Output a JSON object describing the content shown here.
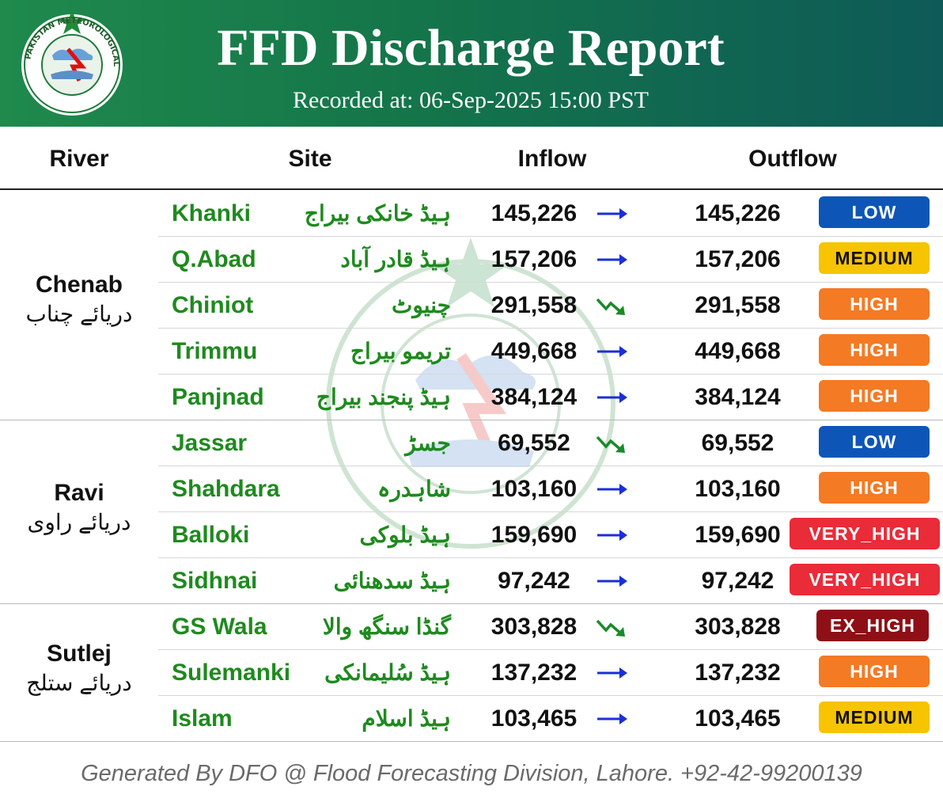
{
  "header": {
    "title": "FFD Discharge Report",
    "subtitle": "Recorded at: 06-Sep-2025 15:00 PST",
    "logo_text": "PAKISTAN METEOROLOGICAL DEPARTMENT"
  },
  "columns": {
    "river": "River",
    "site": "Site",
    "inflow": "Inflow",
    "outflow": "Outflow"
  },
  "colors": {
    "header_start": "#1f8a4c",
    "header_end": "#0e5a58",
    "site_text": "#1e8a1e",
    "low": "#0d56b8",
    "medium": "#f6c400",
    "high": "#f47a24",
    "very_high": "#ea2b38",
    "ex_high": "#8f0f16"
  },
  "rivers": [
    {
      "name": "Chenab",
      "urdu": "دریائے چناب"
    },
    {
      "name": "Ravi",
      "urdu": "دریائے راوی"
    },
    {
      "name": "Sutlej",
      "urdu": "دریائے ستلج"
    }
  ],
  "rows": [
    {
      "site": "Khanki",
      "site_urdu": "ہیڈ خانکی بیراج",
      "inflow": "145,226",
      "trend": "steady",
      "outflow": "145,226",
      "status": "LOW"
    },
    {
      "site": "Q.Abad",
      "site_urdu": "ہیڈ قادر آباد",
      "inflow": "157,206",
      "trend": "steady",
      "outflow": "157,206",
      "status": "MEDIUM"
    },
    {
      "site": "Chiniot",
      "site_urdu": "چنیوٹ",
      "inflow": "291,558",
      "trend": "falling",
      "outflow": "291,558",
      "status": "HIGH"
    },
    {
      "site": "Trimmu",
      "site_urdu": "تریمو بیراج",
      "inflow": "449,668",
      "trend": "steady",
      "outflow": "449,668",
      "status": "HIGH"
    },
    {
      "site": "Panjnad",
      "site_urdu": "ہیڈ پنجند بیراج",
      "inflow": "384,124",
      "trend": "steady",
      "outflow": "384,124",
      "status": "HIGH"
    },
    {
      "site": "Jassar",
      "site_urdu": "جسڑ",
      "inflow": "69,552",
      "trend": "falling",
      "outflow": "69,552",
      "status": "LOW"
    },
    {
      "site": "Shahdara",
      "site_urdu": "شاہدرہ",
      "inflow": "103,160",
      "trend": "steady",
      "outflow": "103,160",
      "status": "HIGH"
    },
    {
      "site": "Balloki",
      "site_urdu": "ہیڈ بلوکی",
      "inflow": "159,690",
      "trend": "steady",
      "outflow": "159,690",
      "status": "VERY_HIGH"
    },
    {
      "site": "Sidhnai",
      "site_urdu": "ہیڈ سدھنائی",
      "inflow": "97,242",
      "trend": "steady",
      "outflow": "97,242",
      "status": "VERY_HIGH"
    },
    {
      "site": "GS Wala",
      "site_urdu": "گنڈا سنگھ والا",
      "inflow": "303,828",
      "trend": "falling",
      "outflow": "303,828",
      "status": "EX_HIGH"
    },
    {
      "site": "Sulemanki",
      "site_urdu": "ہیڈ سُلیمانکی",
      "inflow": "137,232",
      "trend": "steady",
      "outflow": "137,232",
      "status": "HIGH"
    },
    {
      "site": "Islam",
      "site_urdu": "ہیڈ اسلام",
      "inflow": "103,465",
      "trend": "steady",
      "outflow": "103,465",
      "status": "MEDIUM"
    }
  ],
  "footer": "Generated By DFO @ Flood Forecasting Division, Lahore. +92-42-99200139"
}
